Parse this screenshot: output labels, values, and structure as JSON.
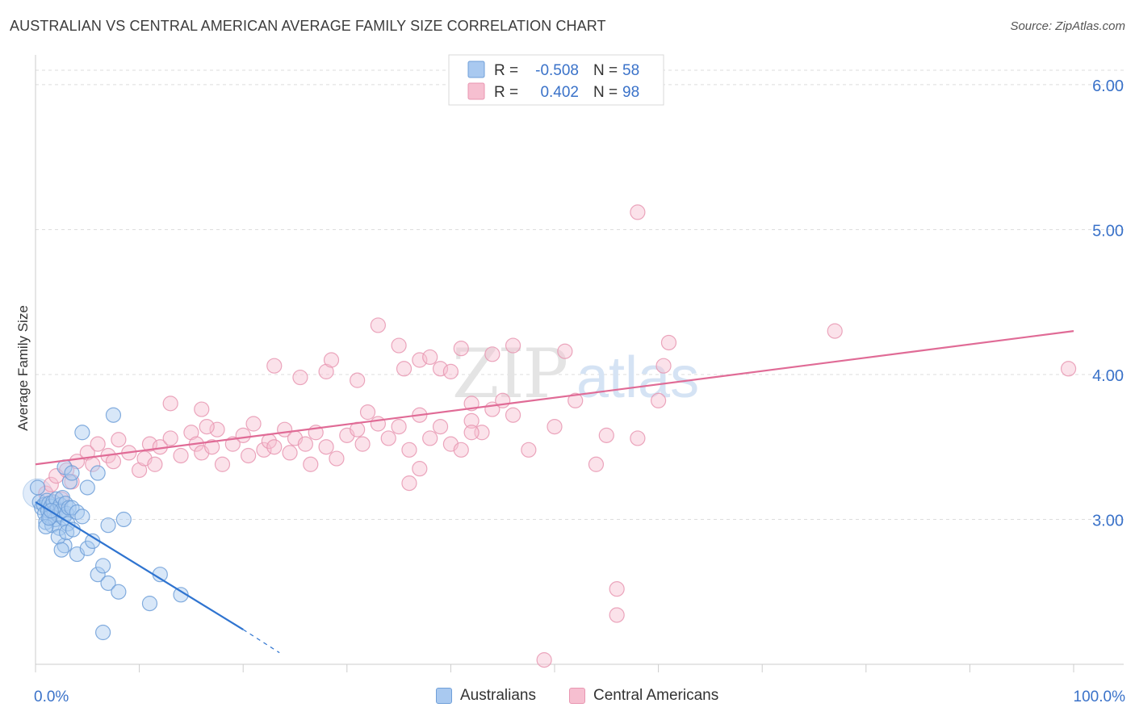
{
  "header": {
    "title": "AUSTRALIAN VS CENTRAL AMERICAN AVERAGE FAMILY SIZE CORRELATION CHART",
    "source": "Source: ZipAtlas.com"
  },
  "watermark": {
    "zip": "ZIP",
    "atlas": "atlas"
  },
  "colors": {
    "australians_fill": "#a9c9f0",
    "australians_stroke": "#6f9fd8",
    "australians_line": "#2f74d0",
    "central_fill": "#f6bfd0",
    "central_stroke": "#e896b1",
    "central_line": "#e06b96",
    "value_text": "#3a72c9",
    "grid": "#dddddd"
  },
  "legend_top": {
    "rows": [
      {
        "r_label": "R =",
        "r_value": "-0.508",
        "n_label": "N =",
        "n_value": "58"
      },
      {
        "r_label": "R =",
        "r_value": "0.402",
        "n_label": "N =",
        "n_value": "98"
      }
    ]
  },
  "legend_bottom": {
    "items": [
      {
        "label": "Australians"
      },
      {
        "label": "Central Americans"
      }
    ]
  },
  "chart_data": {
    "type": "scatter",
    "title": "AUSTRALIAN VS CENTRAL AMERICAN AVERAGE FAMILY SIZE CORRELATION CHART",
    "xlabel": "",
    "ylabel": "Average Family Size",
    "xlim": [
      0,
      100
    ],
    "ylim": [
      2.0,
      6.15
    ],
    "x_tick_labels": [
      "0.0%",
      "100.0%"
    ],
    "y_ticks": [
      3.0,
      4.0,
      5.0,
      6.0
    ],
    "y_tick_labels": [
      "3.00",
      "4.00",
      "5.00",
      "6.00"
    ],
    "grid": true,
    "legend_placement": "top-center and bottom",
    "series": [
      {
        "name": "Australians",
        "r": -0.508,
        "n": 58,
        "trendline": {
          "x": [
            0,
            20
          ],
          "y": [
            3.12,
            2.24
          ],
          "dashed_to": [
            23.5,
            2.08
          ]
        },
        "points": [
          [
            0.2,
            3.22
          ],
          [
            0.4,
            3.12
          ],
          [
            0.6,
            3.08
          ],
          [
            0.8,
            3.1
          ],
          [
            0.9,
            3.04
          ],
          [
            1.0,
            2.98
          ],
          [
            1.1,
            3.13
          ],
          [
            1.2,
            3.06
          ],
          [
            1.3,
            3.11
          ],
          [
            1.4,
            3.02
          ],
          [
            1.5,
            3.09
          ],
          [
            1.6,
            2.96
          ],
          [
            1.7,
            3.12
          ],
          [
            1.8,
            3.05
          ],
          [
            1.9,
            3.0
          ],
          [
            2.0,
            3.14
          ],
          [
            2.1,
            3.07
          ],
          [
            2.2,
            3.03
          ],
          [
            2.3,
            2.94
          ],
          [
            2.4,
            3.1
          ],
          [
            2.5,
            3.06
          ],
          [
            2.6,
            3.15
          ],
          [
            2.7,
            3.01
          ],
          [
            2.8,
            2.82
          ],
          [
            2.9,
            3.11
          ],
          [
            3.0,
            3.04
          ],
          [
            3.1,
            2.97
          ],
          [
            3.2,
            3.08
          ],
          [
            1.0,
            2.95
          ],
          [
            1.3,
            3.01
          ],
          [
            1.5,
            3.06
          ],
          [
            2.2,
            2.88
          ],
          [
            2.5,
            2.79
          ],
          [
            3.0,
            2.91
          ],
          [
            3.5,
            3.08
          ],
          [
            3.3,
            3.26
          ],
          [
            4.0,
            3.05
          ],
          [
            4.5,
            3.02
          ],
          [
            3.6,
            2.93
          ],
          [
            4.0,
            2.76
          ],
          [
            5.0,
            2.8
          ],
          [
            5.5,
            2.85
          ],
          [
            6.0,
            2.62
          ],
          [
            6.5,
            2.68
          ],
          [
            7.0,
            2.56
          ],
          [
            8.0,
            2.5
          ],
          [
            8.5,
            3.0
          ],
          [
            7.0,
            2.96
          ],
          [
            2.8,
            3.36
          ],
          [
            3.5,
            3.32
          ],
          [
            4.5,
            3.6
          ],
          [
            5.0,
            3.22
          ],
          [
            6.0,
            3.32
          ],
          [
            7.5,
            3.72
          ],
          [
            6.5,
            2.22
          ],
          [
            12.0,
            2.62
          ],
          [
            11.0,
            2.42
          ],
          [
            14.0,
            2.48
          ]
        ]
      },
      {
        "name": "Central Americans",
        "r": 0.402,
        "n": 98,
        "trendline": {
          "x": [
            0,
            100
          ],
          "y": [
            3.38,
            4.3
          ]
        },
        "points": [
          [
            1.0,
            3.18
          ],
          [
            1.5,
            3.24
          ],
          [
            2.0,
            3.3
          ],
          [
            2.5,
            3.14
          ],
          [
            3.0,
            3.34
          ],
          [
            3.5,
            3.26
          ],
          [
            4.0,
            3.4
          ],
          [
            5.0,
            3.46
          ],
          [
            5.5,
            3.38
          ],
          [
            6.0,
            3.52
          ],
          [
            7.0,
            3.44
          ],
          [
            7.5,
            3.4
          ],
          [
            8.0,
            3.55
          ],
          [
            9.0,
            3.46
          ],
          [
            10.0,
            3.34
          ],
          [
            10.5,
            3.42
          ],
          [
            11.0,
            3.52
          ],
          [
            11.5,
            3.38
          ],
          [
            12.0,
            3.5
          ],
          [
            13.0,
            3.56
          ],
          [
            14.0,
            3.44
          ],
          [
            15.0,
            3.6
          ],
          [
            15.5,
            3.52
          ],
          [
            16.0,
            3.46
          ],
          [
            17.0,
            3.5
          ],
          [
            17.5,
            3.62
          ],
          [
            18.0,
            3.38
          ],
          [
            19.0,
            3.52
          ],
          [
            20.0,
            3.58
          ],
          [
            20.5,
            3.44
          ],
          [
            21.0,
            3.66
          ],
          [
            22.0,
            3.48
          ],
          [
            22.5,
            3.54
          ],
          [
            23.0,
            3.5
          ],
          [
            24.0,
            3.62
          ],
          [
            24.5,
            3.46
          ],
          [
            25.0,
            3.56
          ],
          [
            26.0,
            3.52
          ],
          [
            26.5,
            3.38
          ],
          [
            27.0,
            3.6
          ],
          [
            28.0,
            3.5
          ],
          [
            29.0,
            3.42
          ],
          [
            30.0,
            3.58
          ],
          [
            31.0,
            3.62
          ],
          [
            31.5,
            3.52
          ],
          [
            32.0,
            3.74
          ],
          [
            33.0,
            3.66
          ],
          [
            34.0,
            3.56
          ],
          [
            35.0,
            3.64
          ],
          [
            36.0,
            3.48
          ],
          [
            37.0,
            3.72
          ],
          [
            38.0,
            3.56
          ],
          [
            39.0,
            3.64
          ],
          [
            40.0,
            3.52
          ],
          [
            41.0,
            3.48
          ],
          [
            42.0,
            3.68
          ],
          [
            43.0,
            3.6
          ],
          [
            44.0,
            3.76
          ],
          [
            45.0,
            3.82
          ],
          [
            46.0,
            3.72
          ],
          [
            13.0,
            3.8
          ],
          [
            16.0,
            3.76
          ],
          [
            16.5,
            3.64
          ],
          [
            23.0,
            4.06
          ],
          [
            25.5,
            3.98
          ],
          [
            28.0,
            4.02
          ],
          [
            28.5,
            4.1
          ],
          [
            31.0,
            3.96
          ],
          [
            33.0,
            4.34
          ],
          [
            35.0,
            4.2
          ],
          [
            35.5,
            4.04
          ],
          [
            37.0,
            4.1
          ],
          [
            38.0,
            4.12
          ],
          [
            39.0,
            4.04
          ],
          [
            40.0,
            4.02
          ],
          [
            41.0,
            4.18
          ],
          [
            42.0,
            3.8
          ],
          [
            44.0,
            4.14
          ],
          [
            46.0,
            4.2
          ],
          [
            42.0,
            3.6
          ],
          [
            47.5,
            3.48
          ],
          [
            50.0,
            3.64
          ],
          [
            51.0,
            4.16
          ],
          [
            52.0,
            3.82
          ],
          [
            54.0,
            3.38
          ],
          [
            55.0,
            3.58
          ],
          [
            56.0,
            2.52
          ],
          [
            56.0,
            2.34
          ],
          [
            58.0,
            5.12
          ],
          [
            58.0,
            3.56
          ],
          [
            61.0,
            4.22
          ],
          [
            60.5,
            4.06
          ],
          [
            60.0,
            3.82
          ],
          [
            77.0,
            4.3
          ],
          [
            99.5,
            4.04
          ],
          [
            37.0,
            3.35
          ],
          [
            36.0,
            3.25
          ],
          [
            49.0,
            2.03
          ]
        ]
      }
    ]
  }
}
